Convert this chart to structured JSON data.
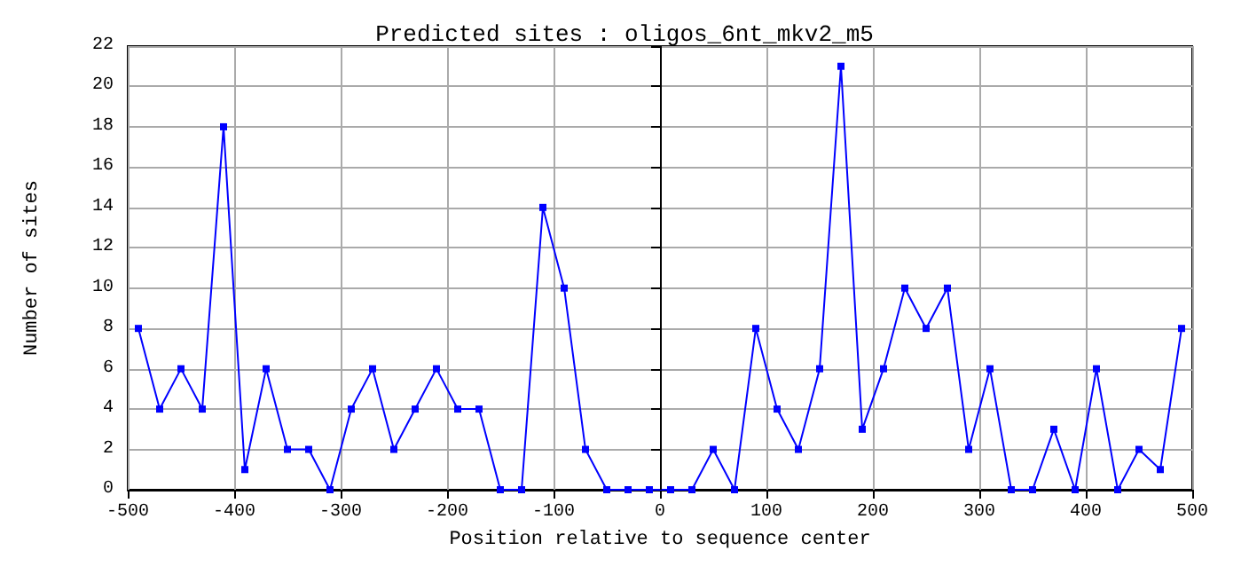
{
  "chart_data": {
    "type": "line",
    "title": "Predicted sites : oligos_6nt_mkv2_m5",
    "xlabel": "Position relative to sequence center",
    "ylabel": "Number of sites",
    "x": [
      -490,
      -470,
      -450,
      -430,
      -410,
      -390,
      -370,
      -350,
      -330,
      -310,
      -290,
      -270,
      -250,
      -230,
      -210,
      -190,
      -170,
      -150,
      -130,
      -110,
      -90,
      -70,
      -50,
      -30,
      -10,
      10,
      30,
      50,
      70,
      90,
      110,
      130,
      150,
      170,
      190,
      210,
      230,
      250,
      270,
      290,
      310,
      330,
      350,
      370,
      390,
      410,
      430,
      450,
      470,
      490
    ],
    "series": [
      {
        "color": "#0000ff",
        "values": [
          8,
          4,
          6,
          4,
          18,
          1,
          6,
          2,
          2,
          0,
          4,
          6,
          2,
          4,
          6,
          4,
          4,
          0,
          0,
          14,
          10,
          2,
          0,
          0,
          0,
          0,
          0,
          2,
          0,
          8,
          4,
          2,
          6,
          21,
          3,
          6,
          10,
          8,
          10,
          2,
          6,
          0,
          0,
          3,
          0,
          6,
          0,
          2,
          1,
          8
        ]
      }
    ],
    "xlim": [
      -500,
      500
    ],
    "xticks": [
      -500,
      -400,
      -300,
      -200,
      -100,
      0,
      100,
      200,
      300,
      400,
      500
    ],
    "ylim": [
      0,
      22
    ],
    "yticks": [
      0,
      2,
      4,
      6,
      8,
      10,
      12,
      14,
      16,
      18,
      20,
      22
    ],
    "ref_lines": [
      {
        "axis": "x",
        "value": 0,
        "color": "#000000"
      }
    ],
    "grid": true,
    "marker": "square",
    "line_style": "solid"
  }
}
